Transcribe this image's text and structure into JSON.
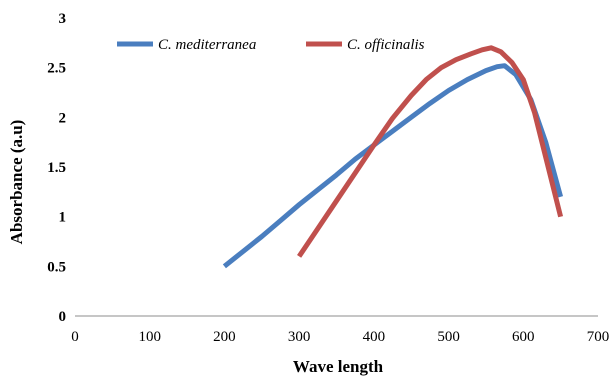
{
  "chart_data": {
    "type": "line",
    "title": "",
    "xlabel": "Wave length",
    "ylabel": "Absorbance (a.u)",
    "xlim": [
      0,
      700
    ],
    "ylim": [
      0,
      3
    ],
    "xticks": [
      0,
      100,
      200,
      300,
      400,
      500,
      600,
      700
    ],
    "yticks": [
      0,
      0.5,
      1,
      1.5,
      2,
      2.5,
      3
    ],
    "grid": false,
    "legend": "top-left",
    "series": [
      {
        "name": "C. mediterranea",
        "color": "#4a7ebf",
        "x": [
          200,
          225,
          250,
          275,
          300,
          325,
          350,
          375,
          400,
          425,
          450,
          475,
          500,
          525,
          550,
          565,
          575,
          590,
          610,
          630,
          650
        ],
        "y": [
          0.5,
          0.65,
          0.8,
          0.96,
          1.12,
          1.27,
          1.42,
          1.58,
          1.72,
          1.86,
          2.0,
          2.14,
          2.27,
          2.38,
          2.47,
          2.51,
          2.52,
          2.43,
          2.18,
          1.75,
          1.2
        ]
      },
      {
        "name": "C. officinalis",
        "color": "#c0504d",
        "x": [
          300,
          325,
          350,
          375,
          400,
          425,
          450,
          470,
          490,
          510,
          530,
          545,
          557,
          570,
          585,
          600,
          615,
          630,
          650
        ],
        "y": [
          0.6,
          0.88,
          1.16,
          1.44,
          1.72,
          1.99,
          2.22,
          2.38,
          2.5,
          2.58,
          2.64,
          2.68,
          2.7,
          2.66,
          2.55,
          2.38,
          2.05,
          1.6,
          1.0
        ]
      }
    ]
  }
}
